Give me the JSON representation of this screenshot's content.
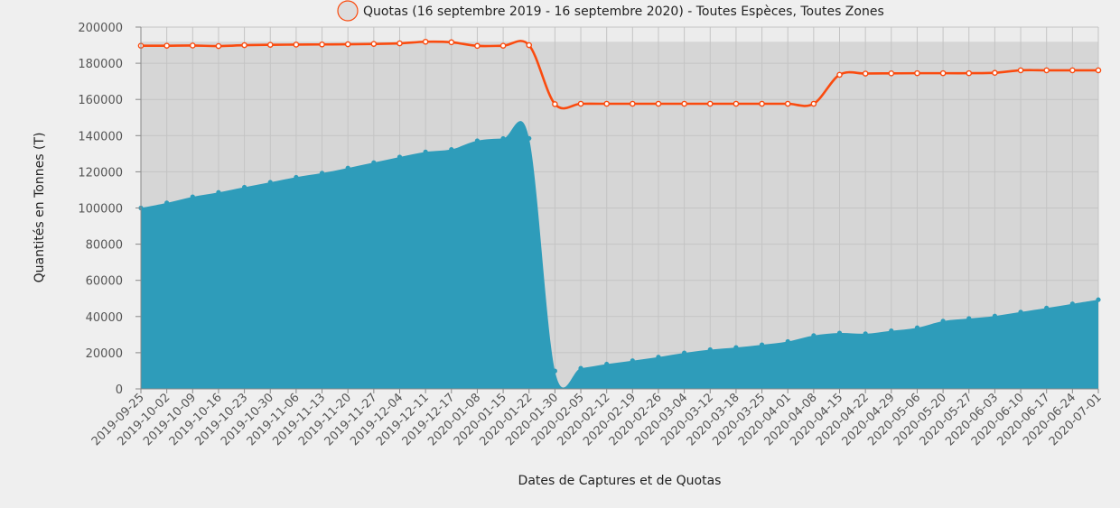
{
  "chart_data": {
    "type": "area",
    "legend": {
      "label": "Quotas (16 septembre 2019 - 16 septembre 2020) - Toutes Espèces, Toutes Zones",
      "placement": "top-center"
    },
    "xlabel": "Dates de Captures et de Quotas",
    "ylabel": "Quantités en Tonnes (T)",
    "ylim": [
      0,
      200000
    ],
    "yticks": [
      0,
      20000,
      40000,
      60000,
      80000,
      100000,
      120000,
      140000,
      160000,
      180000,
      200000
    ],
    "grid": true,
    "x": [
      "2019-09-25",
      "2019-10-02",
      "2019-10-09",
      "2019-10-16",
      "2019-10-23",
      "2019-10-30",
      "2019-11-06",
      "2019-11-13",
      "2019-11-20",
      "2019-11-27",
      "2019-12-04",
      "2019-12-11",
      "2019-12-17",
      "2020-01-08",
      "2020-01-15",
      "2020-01-22",
      "2020-01-30",
      "2020-02-05",
      "2020-02-12",
      "2020-02-19",
      "2020-02-26",
      "2020-03-04",
      "2020-03-12",
      "2020-03-18",
      "2020-03-25",
      "2020-04-01",
      "2020-04-08",
      "2020-04-15",
      "2020-04-22",
      "2020-04-29",
      "2020-05-06",
      "2020-05-20",
      "2020-05-27",
      "2020-06-03",
      "2020-06-10",
      "2020-06-17",
      "2020-06-24",
      "2020-07-01"
    ],
    "series": [
      {
        "name": "Quotas (16 septembre 2019 - 16 septembre 2020) - Toutes Espèces, Toutes Zones",
        "kind": "line",
        "color": "#fa4b0f",
        "values": [
          189700,
          189700,
          189800,
          189500,
          190000,
          190200,
          190300,
          190400,
          190500,
          190700,
          191000,
          191900,
          191600,
          189600,
          189700,
          190000,
          157400,
          157600,
          157600,
          157600,
          157600,
          157600,
          157600,
          157600,
          157600,
          157600,
          157600,
          173600,
          174300,
          174400,
          174500,
          174500,
          174500,
          174700,
          176100,
          176100,
          176100,
          176100
        ]
      },
      {
        "kind": "area",
        "color": "#2e9cba",
        "values": [
          100000,
          102800,
          106200,
          108600,
          111500,
          114200,
          117000,
          119300,
          122100,
          125100,
          128200,
          131000,
          132400,
          137200,
          138400,
          138500,
          9900,
          11400,
          13700,
          15600,
          17600,
          19900,
          21700,
          22900,
          24400,
          26200,
          29500,
          30900,
          30500,
          32100,
          33800,
          37500,
          38900,
          40300,
          42500,
          44700,
          47000,
          49300
        ]
      }
    ]
  }
}
